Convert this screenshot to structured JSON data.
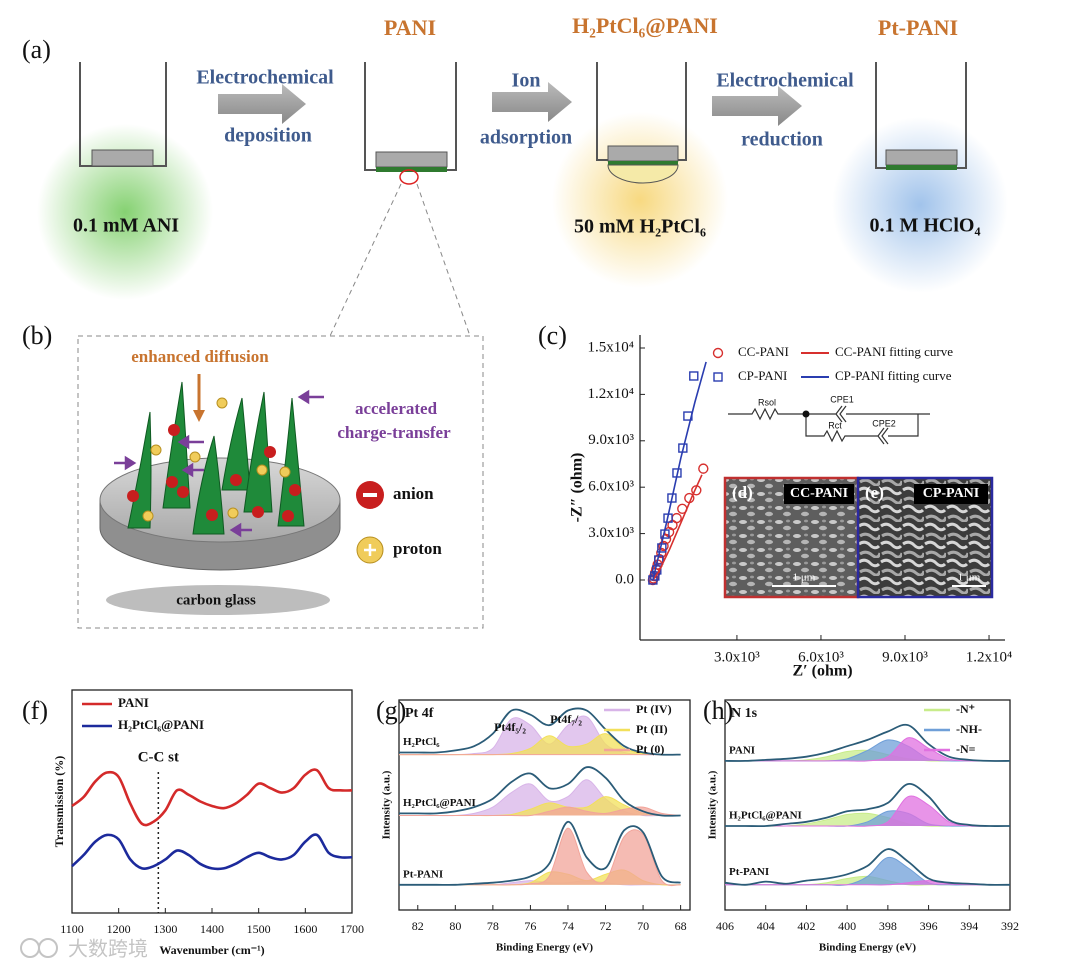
{
  "panel_labels": [
    "(a)",
    "(b)",
    "(c)",
    "(f)",
    "(g)",
    "(h)"
  ],
  "scheme": {
    "products": [
      "PANI",
      "H₂PtCl₆@PANI",
      "Pt-PANI"
    ],
    "steps": [
      [
        "Electrochemical",
        "deposition"
      ],
      [
        "Ion",
        "adsorption"
      ],
      [
        "Electrochemical",
        "reduction"
      ]
    ],
    "solutions": [
      "0.1 mM ANI",
      "50 mM H₂PtCl₆",
      "0.1 M HClO₄"
    ]
  },
  "illustration": {
    "diffusion": "enhanced diffusion",
    "transfer": [
      "accelerated",
      "charge-transfer"
    ],
    "legend": [
      "anion",
      "proton"
    ],
    "substrate": "carbon glass"
  },
  "watermark": "大数跨境",
  "chart_data": [
    {
      "type": "scatter",
      "xlabel": "Z′ (ohm)",
      "ylabel": "-Z″ (ohm)",
      "xlim": [
        -460,
        12570
      ],
      "ylim": [
        -3880,
        15840
      ],
      "xticks": [
        {
          "value": 3000,
          "label": "3.0x10³"
        },
        {
          "value": 6000,
          "label": "6.0x10³"
        },
        {
          "value": 9000,
          "label": "9.0x10³"
        },
        {
          "value": 12000,
          "label": "1.2x10⁴"
        }
      ],
      "yticks": [
        {
          "value": 0,
          "label": "0.0"
        },
        {
          "value": 3000,
          "label": "3.0x10³"
        },
        {
          "value": 6000,
          "label": "6.0x10³"
        },
        {
          "value": 9000,
          "label": "9.0x10³"
        },
        {
          "value": 12000,
          "label": "1.2x10⁴"
        },
        {
          "value": 15000,
          "label": "1.5x10⁴"
        }
      ],
      "series": [
        {
          "name": "CC-PANI",
          "color": "#d7302e",
          "mark": "circle",
          "x": [
            0,
            20,
            50,
            80,
            120,
            170,
            230,
            300,
            380,
            470,
            580,
            700,
            850,
            1050,
            1300,
            1550,
            1800
          ],
          "values": [
            0,
            100,
            250,
            450,
            700,
            1000,
            1350,
            1750,
            2200,
            2650,
            3100,
            3550,
            4000,
            4600,
            5300,
            5800,
            7200
          ]
        },
        {
          "name": "CP-PANI",
          "color": "#2a3db0",
          "mark": "square",
          "x": [
            0,
            70,
            140,
            210,
            320,
            430,
            540,
            680,
            860,
            1070,
            1250,
            1460
          ],
          "values": [
            0,
            260,
            650,
            1290,
            2070,
            2970,
            4000,
            5300,
            6920,
            8530,
            10600,
            13190
          ]
        },
        {
          "name": "CC-PANI fitting curve",
          "color": "#d7302e",
          "mark": "line",
          "x": [
            0,
            200,
            600,
            1000,
            1400,
            1750
          ],
          "values": [
            0,
            500,
            2000,
            3700,
            5400,
            6800
          ]
        },
        {
          "name": "CP-PANI fitting curve",
          "color": "#2a3db0",
          "mark": "line",
          "x": [
            0,
            500,
            1000,
            1500,
            1900
          ],
          "values": [
            0,
            3800,
            7900,
            11500,
            14100
          ]
        }
      ],
      "inset": {
        "circuit": [
          "Rsol",
          "CPE1",
          "Rct",
          "CPE2"
        ],
        "images": [
          {
            "tag": "(d)",
            "name": "CC-PANI",
            "scale": "1 μm"
          },
          {
            "tag": "(e)",
            "name": "CP-PANI",
            "scale": "1 μm"
          }
        ]
      }
    },
    {
      "type": "line",
      "xlabel": "Wavenumber (cm⁻¹)",
      "ylabel": "Transmission (%)",
      "xlim": [
        1100,
        1700
      ],
      "xticks": [
        1100,
        1200,
        1300,
        1400,
        1500,
        1600,
        1700
      ],
      "ylim": [
        0,
        10
      ],
      "legend": "upper left",
      "x": [
        1100,
        1125,
        1150,
        1175,
        1200,
        1225,
        1250,
        1275,
        1300,
        1325,
        1350,
        1375,
        1400,
        1425,
        1450,
        1475,
        1500,
        1525,
        1550,
        1575,
        1600,
        1625,
        1650,
        1675,
        1700
      ],
      "series": [
        {
          "name": "PANI",
          "color": "#d42a2a",
          "values": [
            4.8,
            5.2,
            5.9,
            6.3,
            6.1,
            4.9,
            4.0,
            4.1,
            4.6,
            5.5,
            5.3,
            5.0,
            4.8,
            4.7,
            4.9,
            5.3,
            5.8,
            5.6,
            5.4,
            5.6,
            6.2,
            6.4,
            5.6,
            5.5,
            5.5
          ]
        },
        {
          "name": "H₂PtCl₆@PANI",
          "color": "#1c2a9c",
          "values": [
            2.1,
            2.6,
            3.2,
            3.5,
            3.3,
            2.4,
            2.0,
            2.1,
            2.4,
            2.8,
            2.6,
            2.2,
            2.0,
            2.0,
            2.2,
            2.5,
            2.7,
            2.5,
            2.4,
            2.6,
            3.2,
            3.5,
            2.7,
            2.5,
            2.5
          ]
        }
      ],
      "annotation": {
        "text": "C-C st",
        "x": 1285
      }
    },
    {
      "type": "xps",
      "title": "Pt 4f",
      "xlabel": "Binding Energy (eV)",
      "ylabel": "Intensity (a.u.)",
      "xlim": [
        83,
        67.5
      ],
      "xticks": [
        82,
        80,
        78,
        76,
        74,
        72,
        70,
        68
      ],
      "ylim": [
        0,
        10
      ],
      "legend": "upper right",
      "x": [
        83,
        82,
        81,
        80,
        79,
        78,
        77,
        76,
        75,
        74,
        73,
        72,
        71,
        70,
        69,
        68
      ],
      "components": [
        {
          "name": "Pt (IV)",
          "color": "#d8b4e8"
        },
        {
          "name": "Pt (II)",
          "color": "#f2e05a"
        },
        {
          "name": "Pt (0)",
          "color": "#f2a49a"
        }
      ],
      "annotations": [
        "Pt4f₅/₂",
        "Pt4f₇/₂"
      ],
      "samples": [
        {
          "name": "H₂PtCl₆",
          "color": "#2b5c78",
          "values": [
            7.5,
            7.5,
            7.5,
            7.6,
            7.8,
            8.4,
            9.5,
            9.3,
            8.8,
            9.5,
            9.5,
            8.6,
            7.8,
            7.5,
            7.4,
            7.4
          ],
          "components": [
            [
              7.4,
              7.4,
              7.4,
              7.4,
              7.45,
              7.7,
              9.1,
              8.8,
              7.9,
              8.8,
              9.2,
              7.9,
              7.5,
              7.4,
              7.4,
              7.4
            ],
            [
              7.4,
              7.4,
              7.4,
              7.4,
              7.4,
              7.4,
              7.45,
              7.7,
              8.3,
              7.8,
              7.9,
              8.4,
              7.7,
              7.45,
              7.4,
              7.4
            ],
            [
              7.4,
              7.4,
              7.4,
              7.4,
              7.4,
              7.4,
              7.4,
              7.4,
              7.4,
              7.4,
              7.4,
              7.4,
              7.4,
              7.4,
              7.4,
              7.4
            ]
          ]
        },
        {
          "name": "H₂PtCl₆@PANI",
          "color": "#2b5c78",
          "values": [
            4.6,
            4.6,
            4.6,
            4.7,
            4.9,
            5.3,
            6.1,
            6.5,
            5.8,
            6.0,
            6.8,
            6.3,
            5.2,
            4.7,
            4.5,
            4.5
          ],
          "components": [
            [
              4.5,
              4.5,
              4.5,
              4.5,
              4.6,
              4.9,
              5.6,
              6.0,
              5.2,
              5.4,
              6.2,
              5.3,
              4.7,
              4.5,
              4.5,
              4.5
            ],
            [
              4.5,
              4.5,
              4.5,
              4.5,
              4.5,
              4.5,
              4.55,
              4.8,
              5.1,
              4.9,
              4.9,
              5.4,
              5.0,
              4.6,
              4.5,
              4.5
            ],
            [
              4.5,
              4.5,
              4.5,
              4.5,
              4.5,
              4.5,
              4.5,
              4.5,
              4.7,
              4.9,
              4.7,
              4.6,
              4.8,
              4.9,
              4.6,
              4.5
            ]
          ]
        },
        {
          "name": "Pt-PANI",
          "color": "#2b5c78",
          "values": [
            1.2,
            1.2,
            1.2,
            1.2,
            1.25,
            1.3,
            1.4,
            1.6,
            2.2,
            4.2,
            2.5,
            2.0,
            3.8,
            3.7,
            1.6,
            1.3
          ],
          "components": [
            [
              1.2,
              1.2,
              1.2,
              1.2,
              1.2,
              1.2,
              1.3,
              1.4,
              1.3,
              1.3,
              1.4,
              1.3,
              1.2,
              1.2,
              1.2,
              1.2
            ],
            [
              1.2,
              1.2,
              1.2,
              1.2,
              1.2,
              1.2,
              1.2,
              1.3,
              1.8,
              1.7,
              1.4,
              1.7,
              1.9,
              1.4,
              1.2,
              1.2
            ],
            [
              1.2,
              1.2,
              1.2,
              1.2,
              1.2,
              1.2,
              1.2,
              1.25,
              1.6,
              3.9,
              1.8,
              1.4,
              3.5,
              3.6,
              1.4,
              1.2
            ]
          ]
        }
      ]
    },
    {
      "type": "xps",
      "title": "N 1s",
      "xlabel": "Binding Energy (eV)",
      "ylabel": "Intensity (a.u.)",
      "xlim": [
        406,
        392
      ],
      "xticks": [
        406,
        404,
        402,
        400,
        398,
        396,
        394,
        392
      ],
      "ylim": [
        0,
        10
      ],
      "legend": "upper right",
      "x": [
        406,
        405,
        404,
        403,
        402,
        401,
        400,
        399,
        398,
        397,
        396,
        395,
        394,
        393,
        392
      ],
      "components": [
        {
          "name": "-N⁺",
          "color": "#c8ec8a"
        },
        {
          "name": "-NH-",
          "color": "#6f9fd8"
        },
        {
          "name": "-N=",
          "color": "#e070e0"
        }
      ],
      "samples": [
        {
          "name": "PANI",
          "color": "#2b5c78",
          "values": [
            7.1,
            7.1,
            7.15,
            7.2,
            7.3,
            7.5,
            7.8,
            8.1,
            8.5,
            8.8,
            7.9,
            7.3,
            7.15,
            7.1,
            7.1
          ],
          "components": [
            [
              7.1,
              7.1,
              7.1,
              7.1,
              7.15,
              7.3,
              7.55,
              7.6,
              7.4,
              7.2,
              7.1,
              7.1,
              7.1,
              7.1,
              7.1
            ],
            [
              7.1,
              7.1,
              7.1,
              7.1,
              7.1,
              7.1,
              7.2,
              7.6,
              8.1,
              7.8,
              7.2,
              7.1,
              7.1,
              7.1,
              7.1
            ],
            [
              7.1,
              7.1,
              7.1,
              7.1,
              7.1,
              7.1,
              7.1,
              7.1,
              7.3,
              8.2,
              7.7,
              7.2,
              7.1,
              7.1,
              7.1
            ]
          ]
        },
        {
          "name": "H₂PtCl₆@PANI",
          "color": "#2b5c78",
          "values": [
            4.0,
            4.0,
            4.0,
            4.1,
            4.2,
            4.4,
            4.7,
            4.8,
            5.1,
            6.0,
            5.4,
            4.3,
            4.05,
            4.0,
            4.0
          ],
          "components": [
            [
              4.0,
              4.0,
              4.0,
              4.0,
              4.1,
              4.3,
              4.55,
              4.6,
              4.4,
              4.1,
              4.0,
              4.0,
              4.0,
              4.0,
              4.0
            ],
            [
              4.0,
              4.0,
              4.0,
              4.0,
              4.0,
              4.0,
              4.0,
              4.2,
              4.7,
              4.6,
              4.1,
              4.0,
              4.0,
              4.0,
              4.0
            ],
            [
              4.0,
              4.0,
              4.0,
              4.0,
              4.0,
              4.0,
              4.0,
              4.0,
              4.2,
              5.4,
              5.0,
              4.2,
              4.0,
              4.0,
              4.0
            ]
          ]
        },
        {
          "name": "Pt-PANI",
          "color": "#2b5c78",
          "values": [
            1.3,
            1.2,
            1.35,
            1.25,
            1.4,
            1.5,
            1.7,
            2.1,
            2.9,
            2.3,
            1.5,
            1.3,
            1.25,
            1.2,
            1.2
          ],
          "components": [
            [
              1.2,
              1.2,
              1.2,
              1.2,
              1.2,
              1.3,
              1.5,
              1.6,
              1.4,
              1.2,
              1.2,
              1.2,
              1.2,
              1.2,
              1.2
            ],
            [
              1.2,
              1.2,
              1.2,
              1.2,
              1.2,
              1.2,
              1.2,
              1.6,
              2.5,
              2.0,
              1.3,
              1.2,
              1.2,
              1.2,
              1.2
            ],
            [
              1.2,
              1.2,
              1.2,
              1.2,
              1.2,
              1.2,
              1.2,
              1.2,
              1.2,
              1.3,
              1.4,
              1.25,
              1.2,
              1.2,
              1.2
            ]
          ]
        }
      ]
    }
  ]
}
